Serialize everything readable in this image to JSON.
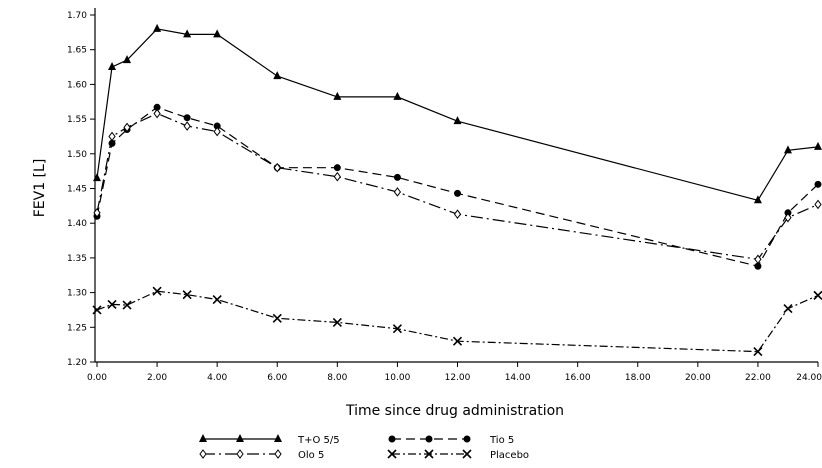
{
  "chart_data": {
    "type": "line",
    "xlabel": "Time since drug administration",
    "ylabel": "FEV1 [L]",
    "xlim": [
      0,
      24
    ],
    "ylim": [
      1.2,
      1.7
    ],
    "x_ticks": [
      0,
      2,
      4,
      6,
      8,
      10,
      12,
      14,
      16,
      18,
      20,
      22,
      24
    ],
    "x_tick_labels": [
      "0.00",
      "2.00",
      "4.00",
      "6.00",
      "8.00",
      "10.00",
      "12.00",
      "14.00",
      "16.00",
      "18.00",
      "20.00",
      "22.00",
      "24.00"
    ],
    "y_ticks": [
      1.2,
      1.25,
      1.3,
      1.35,
      1.4,
      1.45,
      1.5,
      1.55,
      1.6,
      1.65,
      1.7
    ],
    "y_tick_labels": [
      "1.20",
      "1.25",
      "1.30",
      "1.35",
      "1.40",
      "1.45",
      "1.50",
      "1.55",
      "1.60",
      "1.65",
      "1.70"
    ],
    "grid": false,
    "legend_position": "bottom",
    "x": [
      0,
      0.5,
      1,
      2,
      3,
      4,
      6,
      8,
      10,
      12,
      22,
      23,
      24
    ],
    "series": [
      {
        "name": "T+O 5/5",
        "marker": "triangle",
        "dash": "solid",
        "values": [
          1.465,
          1.625,
          1.635,
          1.68,
          1.672,
          1.672,
          1.612,
          1.582,
          1.582,
          1.547,
          1.433,
          1.505,
          1.51
        ]
      },
      {
        "name": "Tio 5",
        "marker": "circle",
        "dash": "longdash",
        "values": [
          1.41,
          1.515,
          1.535,
          1.567,
          1.552,
          1.54,
          1.48,
          1.48,
          1.466,
          1.443,
          1.338,
          1.415,
          1.456
        ]
      },
      {
        "name": "Olo 5",
        "marker": "diamond-open",
        "dash": "dashdot",
        "values": [
          1.415,
          1.525,
          1.538,
          1.558,
          1.54,
          1.532,
          1.48,
          1.467,
          1.445,
          1.413,
          1.348,
          1.408,
          1.427
        ]
      },
      {
        "name": "Placebo",
        "marker": "x",
        "dash": "dotdash",
        "values": [
          1.275,
          1.283,
          1.282,
          1.302,
          1.297,
          1.29,
          1.263,
          1.257,
          1.248,
          1.23,
          1.215,
          1.277,
          1.296
        ]
      }
    ],
    "colors": {
      "line": "#000000",
      "background": "#ffffff"
    }
  }
}
